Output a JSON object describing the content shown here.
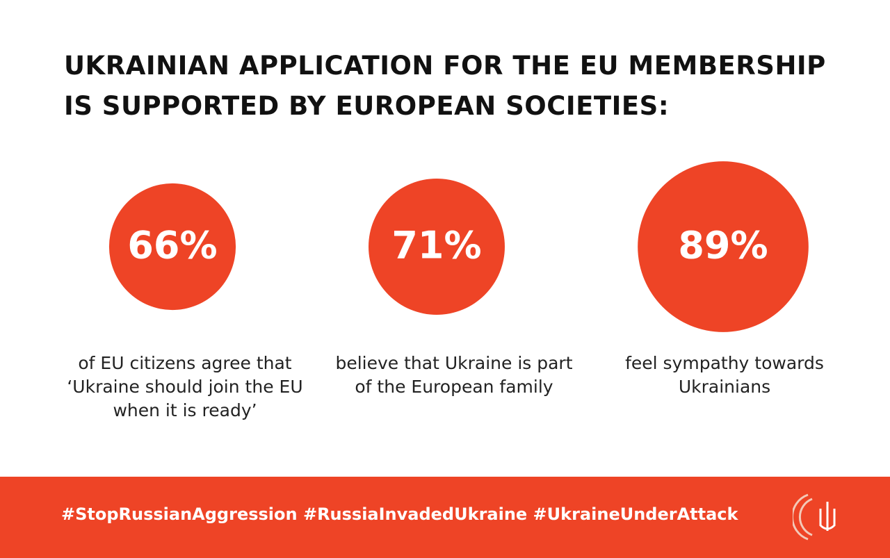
{
  "chart_data": {
    "type": "bubble",
    "title": "UKRAINIAN APPLICATION FOR THE EU MEMBERSHIP IS SUPPORTED BY EUROPEAN SOCIETIES:",
    "values": [
      66,
      71,
      89
    ],
    "value_labels": [
      "66%",
      "71%",
      "89%"
    ],
    "categories": [
      "of EU citizens agree that ‘Ukraine should join the EU when it is ready’",
      "believe that Ukraine is part of the European family",
      "feel sympathy towards Ukrainians"
    ],
    "color": "#ee4426"
  },
  "footer": {
    "hashtags": "#StopRussianAggression #RussiaInvadedUkraine #UkraineUnderAttack"
  }
}
